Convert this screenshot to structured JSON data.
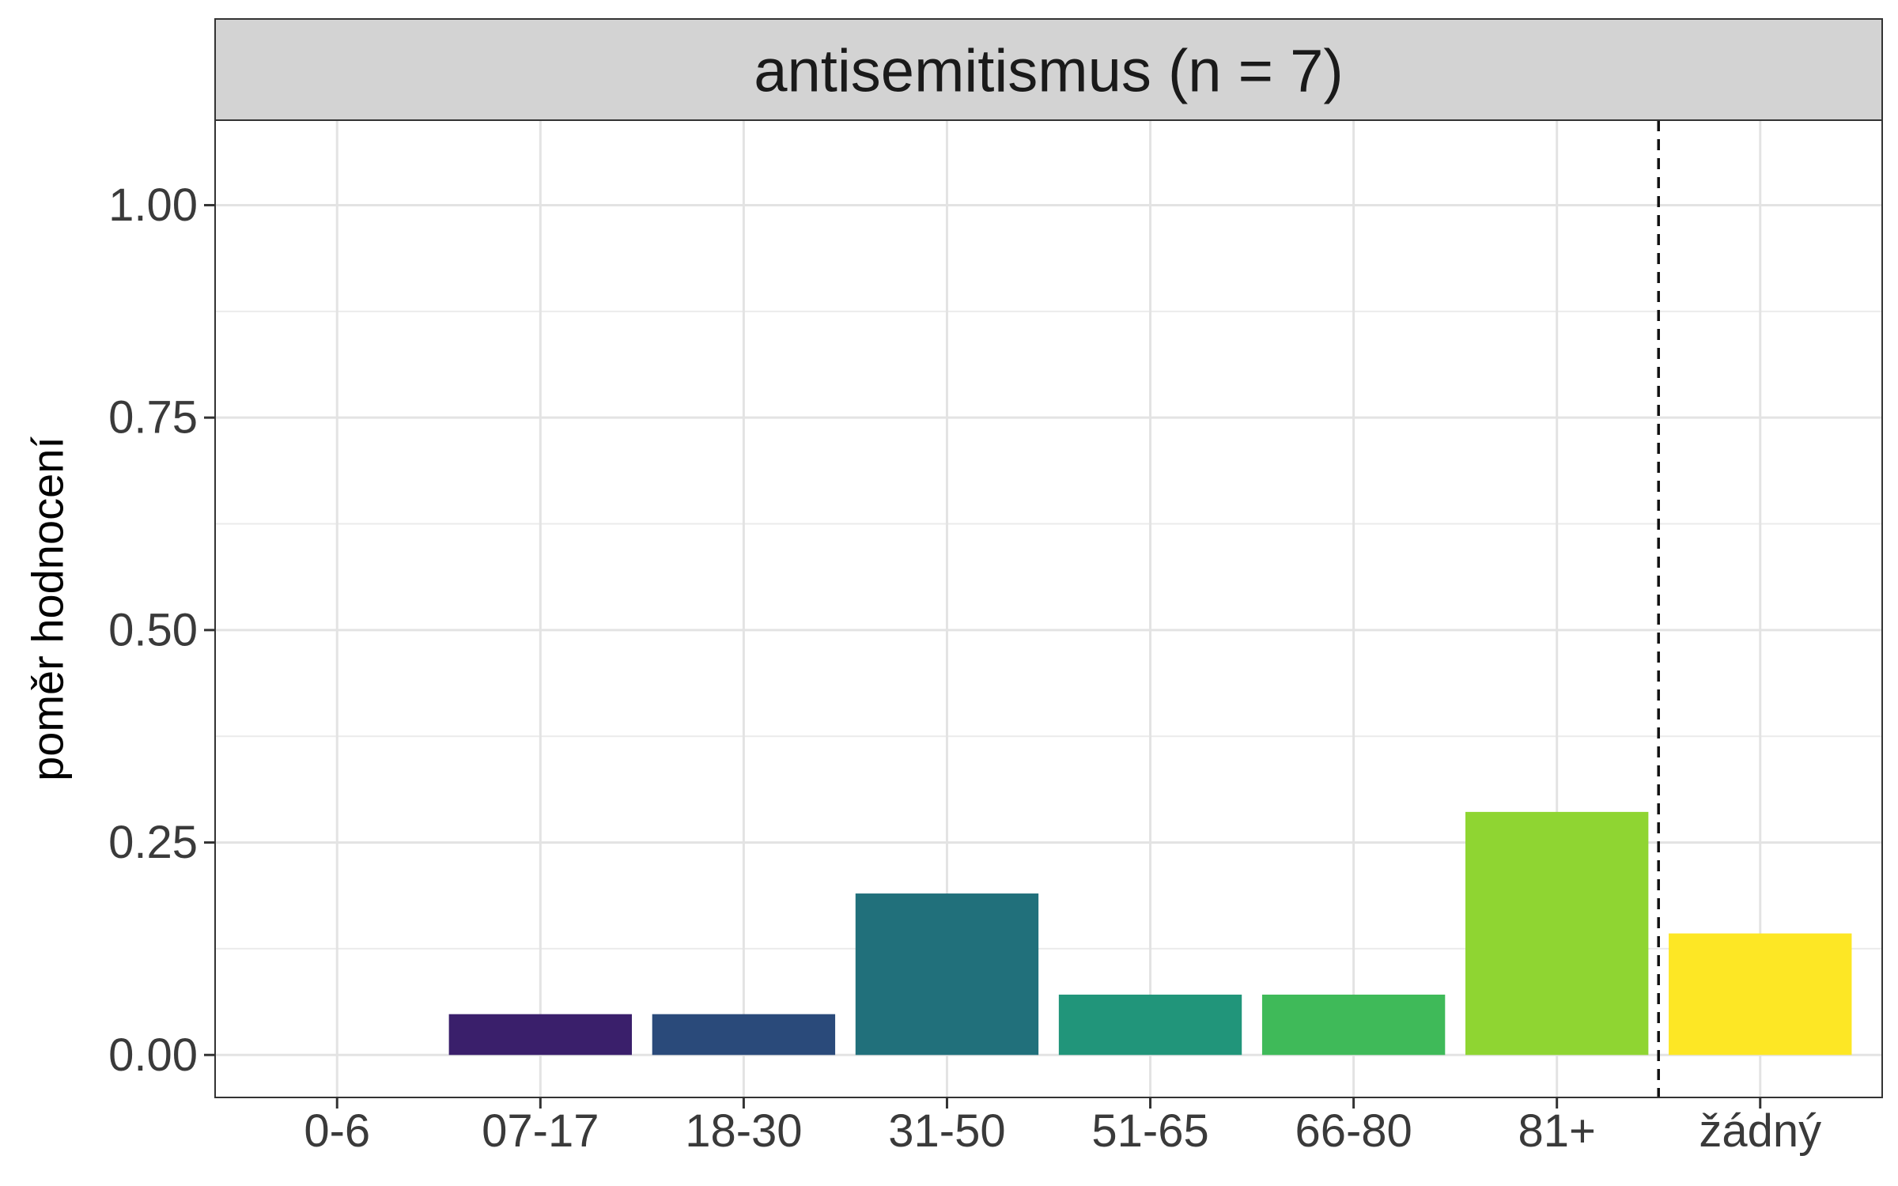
{
  "chart_data": {
    "type": "bar",
    "facet_title": "antisemitismus (n = 7)",
    "categories": [
      "0-6",
      "07-17",
      "18-30",
      "31-50",
      "51-65",
      "66-80",
      "81+",
      "žádný"
    ],
    "values": [
      0.0,
      0.048,
      0.048,
      0.19,
      0.071,
      0.071,
      0.286,
      0.143
    ],
    "colors": [
      "#440154",
      "#3a1f6b",
      "#2a4a7a",
      "#21707b",
      "#21957a",
      "#3fba59",
      "#8fd532",
      "#fde725"
    ],
    "ylabel": "poměr hodnocení",
    "xlabel": "",
    "ylim": [
      -0.05,
      1.1
    ],
    "yticks": [
      0.0,
      0.25,
      0.5,
      0.75,
      1.0
    ],
    "ytick_labels": [
      "0.00",
      "0.25",
      "0.50",
      "0.75",
      "1.00"
    ],
    "grid": true,
    "reference_line": {
      "style": "dashed",
      "between": [
        "81+",
        "žádný"
      ]
    }
  }
}
